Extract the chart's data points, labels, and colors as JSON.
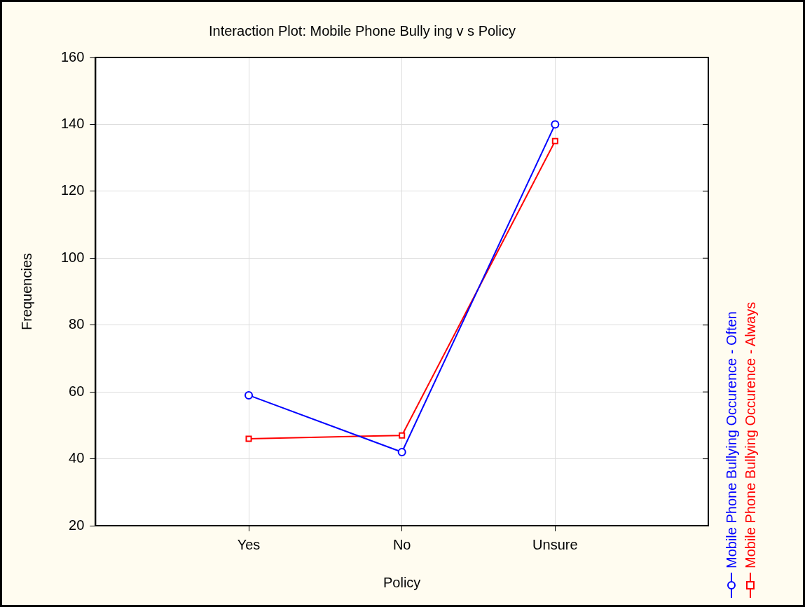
{
  "chart_data": {
    "type": "line",
    "title": "Interaction Plot: Mobile Phone Bully ing v s Policy",
    "xlabel": "Policy",
    "ylabel": "Frequencies",
    "categories": [
      "Yes",
      "No",
      "Unsure"
    ],
    "series": [
      {
        "name": "Mobile Phone Bullying Occurence - Often",
        "color": "#0000ff",
        "marker": "circle",
        "values": [
          59,
          42,
          140
        ]
      },
      {
        "name": "Mobile Phone Bullying Occurence - Always",
        "color": "#ff0000",
        "marker": "square",
        "values": [
          46,
          47,
          135
        ]
      }
    ],
    "ylim": [
      20,
      160
    ],
    "yticks": [
      20,
      40,
      60,
      80,
      100,
      120,
      140,
      160
    ],
    "grid": true,
    "legend": "right"
  }
}
